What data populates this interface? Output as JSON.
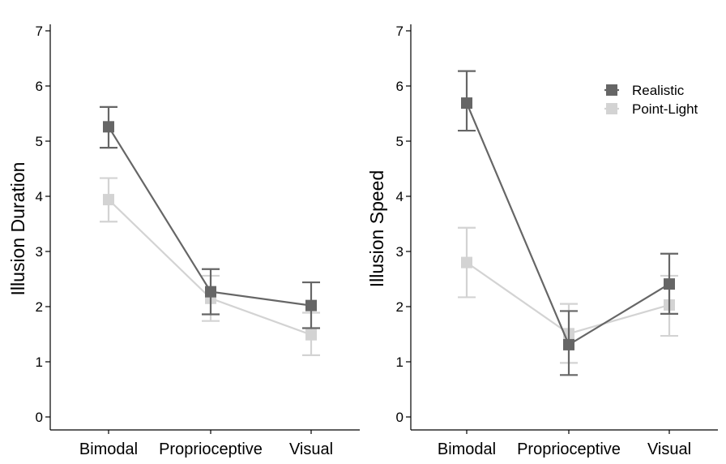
{
  "chart_data": [
    {
      "type": "line",
      "ylabel": "Illusion Duration",
      "xlabel": "",
      "categories": [
        "Bimodal",
        "Proprioceptive",
        "Visual"
      ],
      "ylim": [
        0,
        7
      ],
      "yticks": [
        "0",
        "1",
        "2",
        "3",
        "4",
        "5",
        "6",
        "7"
      ],
      "grid": false,
      "series": [
        {
          "name": "Realistic",
          "color": "#666666",
          "values": [
            5.26,
            2.27,
            2.02
          ],
          "error_low": [
            4.88,
            1.86,
            1.61
          ],
          "error_high": [
            5.62,
            2.68,
            2.44
          ]
        },
        {
          "name": "Point-Light",
          "color": "#d3d3d3",
          "values": [
            3.94,
            2.15,
            1.49
          ],
          "error_low": [
            3.54,
            1.74,
            1.12
          ],
          "error_high": [
            4.33,
            2.56,
            1.89
          ]
        }
      ]
    },
    {
      "type": "line",
      "ylabel": "Illusion Speed",
      "xlabel": "",
      "categories": [
        "Bimodal",
        "Proprioceptive",
        "Visual"
      ],
      "ylim": [
        0,
        7
      ],
      "yticks": [
        "0",
        "1",
        "2",
        "3",
        "4",
        "5",
        "6",
        "7"
      ],
      "grid": false,
      "legend": {
        "position": "top-right",
        "entries": [
          "Realistic",
          "Point-Light"
        ]
      },
      "series": [
        {
          "name": "Realistic",
          "color": "#666666",
          "values": [
            5.69,
            1.31,
            2.41
          ],
          "error_low": [
            5.19,
            0.76,
            1.87
          ],
          "error_high": [
            6.27,
            1.92,
            2.96
          ]
        },
        {
          "name": "Point-Light",
          "color": "#d3d3d3",
          "values": [
            2.8,
            1.51,
            2.03
          ],
          "error_low": [
            2.17,
            0.98,
            1.47
          ],
          "error_high": [
            3.43,
            2.05,
            2.56
          ]
        }
      ]
    }
  ]
}
